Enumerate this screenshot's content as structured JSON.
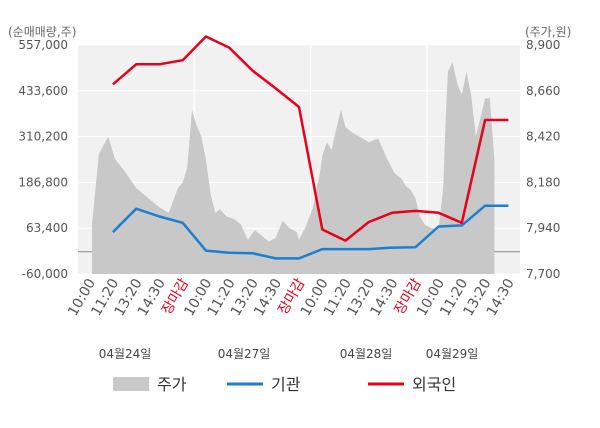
{
  "chart_data": {
    "type": "line",
    "left_unit_label": "(순매매량,주)",
    "right_unit_label": "(주가,원)",
    "left_axis": {
      "ticks": [
        -60000,
        63400,
        186800,
        310200,
        433600,
        557000
      ],
      "tick_labels": [
        "-60,000",
        "63,400",
        "186,800",
        "310,200",
        "433,600",
        "557,000"
      ],
      "ylim": [
        -60000,
        557000
      ]
    },
    "right_axis": {
      "ticks": [
        7700,
        7940,
        8180,
        8420,
        8660,
        8900
      ],
      "tick_labels": [
        "7,700",
        "7,940",
        "8,180",
        "8,420",
        "8,660",
        "8,900"
      ],
      "ylim": [
        7700,
        8900
      ]
    },
    "x_tick_labels": [
      "10:00",
      "11:20",
      "13:20",
      "14:30",
      "장마감",
      "10:00",
      "11:20",
      "13:20",
      "14:30",
      "장마감",
      "10:00",
      "11:20",
      "13:20",
      "14:30",
      "장마감",
      "10:00",
      "11:20",
      "13:20",
      "14:30"
    ],
    "close_label": "장마감",
    "dates": [
      "04월24일",
      "04월27일",
      "04월28일",
      "04월29일"
    ],
    "zero_line": 0,
    "legend": [
      {
        "name": "주가",
        "color": "#c8c8c8"
      },
      {
        "name": "기관",
        "color": "#1a7fd1"
      },
      {
        "name": "외국인",
        "color": "#e8001c"
      }
    ],
    "series": [
      {
        "name": "기관",
        "axis": "left",
        "color": "#1a7fd1",
        "x": [
          1,
          2,
          3,
          4,
          5,
          6,
          7,
          8,
          9,
          10,
          11,
          12,
          13,
          14,
          15,
          16,
          17,
          18
        ],
        "values": [
          53000,
          116000,
          95000,
          78000,
          3000,
          -3000,
          -4000,
          -18000,
          -18000,
          7000,
          7000,
          7000,
          11000,
          12000,
          68000,
          71000,
          124000,
          124000
        ]
      },
      {
        "name": "외국인",
        "axis": "left",
        "color": "#e8001c",
        "x": [
          1,
          2,
          3,
          4,
          5,
          6,
          7,
          8,
          9,
          10,
          11,
          12,
          13,
          14,
          15,
          16,
          17,
          18
        ],
        "values": [
          451000,
          505000,
          505000,
          516000,
          580000,
          550000,
          488000,
          440000,
          390000,
          60000,
          30000,
          80000,
          105000,
          110000,
          105000,
          78000,
          355000,
          355000
        ]
      },
      {
        "name": "주가",
        "axis": "right",
        "type": "area",
        "color": "#c8c8c8",
        "x": [
          0.1,
          0.4,
          0.8,
          1.1,
          1.5,
          2.0,
          2.5,
          3.0,
          3.4,
          3.8,
          4.0,
          4.2,
          4.4,
          4.6,
          4.8,
          5.0,
          5.2,
          5.4,
          5.6,
          5.9,
          6.2,
          6.5,
          6.8,
          7.1,
          7.4,
          7.7,
          8.0,
          8.3,
          8.6,
          8.9,
          9.0,
          9.3,
          9.6,
          9.9,
          10.0,
          10.2,
          10.4,
          10.6,
          10.8,
          11.0,
          11.3,
          11.6,
          12.0,
          12.4,
          12.8,
          13.1,
          13.4,
          13.6,
          13.8,
          14.0,
          14.2,
          14.4,
          14.7,
          15.0,
          15.2,
          15.3,
          15.4,
          15.6,
          15.8,
          16.0,
          16.2,
          16.4,
          16.6,
          16.8,
          17.0,
          17.2,
          17.4
        ],
        "values": [
          7960,
          8330,
          8420,
          8300,
          8240,
          8150,
          8100,
          8050,
          8020,
          8150,
          8180,
          8260,
          8560,
          8480,
          8420,
          8300,
          8120,
          8020,
          8040,
          8000,
          7990,
          7960,
          7880,
          7930,
          7900,
          7870,
          7890,
          7980,
          7940,
          7920,
          7880,
          7950,
          8050,
          8230,
          8320,
          8390,
          8350,
          8460,
          8560,
          8470,
          8440,
          8420,
          8390,
          8410,
          8300,
          8230,
          8200,
          8160,
          8140,
          8100,
          8000,
          7960,
          7940,
          7940,
          8150,
          8500,
          8760,
          8810,
          8700,
          8640,
          8760,
          8640,
          8420,
          8520,
          8620,
          8620,
          8300
        ]
      }
    ]
  }
}
